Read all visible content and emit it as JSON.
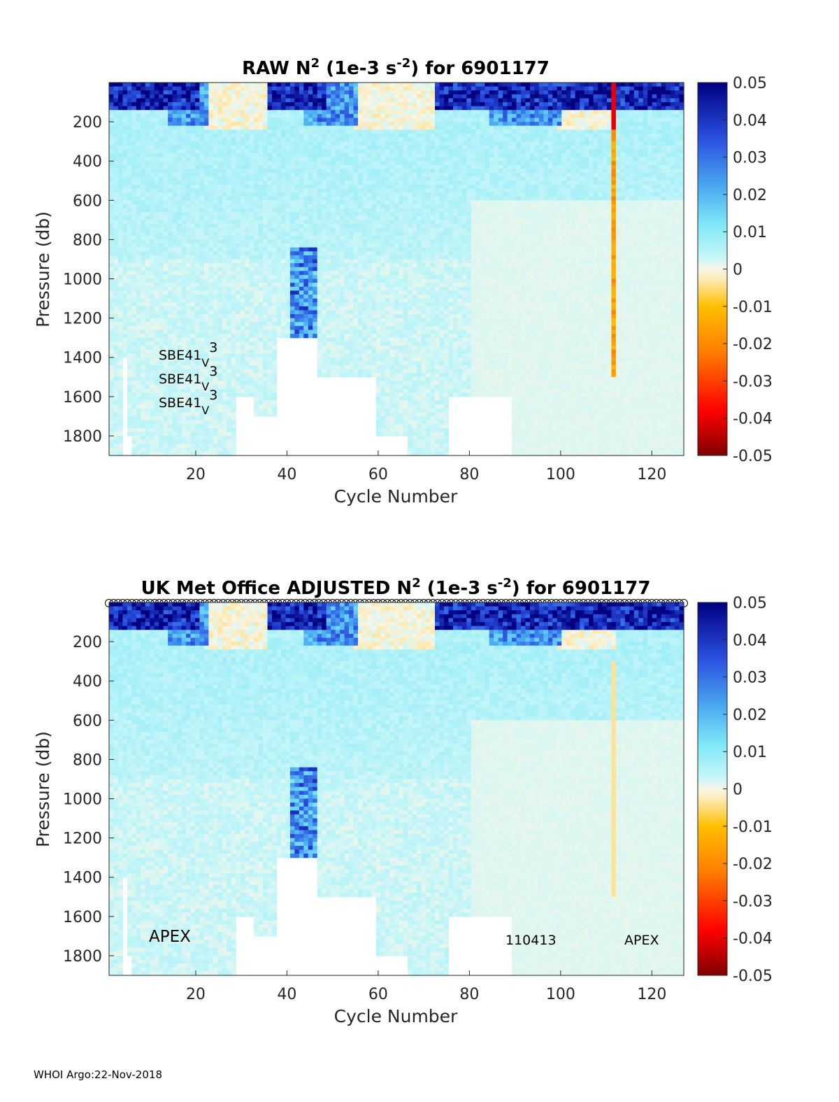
{
  "footer": "WHOI Argo:22-Nov-2018",
  "chart_data": [
    {
      "type": "heatmap",
      "title_parts": [
        "RAW N",
        "2",
        " (1e-3 s",
        "-2",
        ") for 6901177"
      ],
      "xlabel": "Cycle Number",
      "ylabel": "Pressure (db)",
      "xlim": [
        1,
        127
      ],
      "ylim": [
        0,
        1900
      ],
      "y_reversed": true,
      "xticks": [
        20,
        40,
        60,
        80,
        100,
        120
      ],
      "yticks": [
        200,
        400,
        600,
        800,
        1000,
        1200,
        1400,
        1600,
        1800
      ],
      "colorbar": {
        "ticks": [
          "0.05",
          "0.04",
          "0.03",
          "0.02",
          "0.01",
          "0",
          "-0.01",
          "-0.02",
          "-0.03",
          "-0.04",
          "-0.05"
        ],
        "clim": [
          -0.05,
          0.05
        ]
      },
      "annotations": [
        {
          "base": "SBE41",
          "sub": "V",
          "tail": "3"
        },
        {
          "base": "SBE41",
          "sub": "V",
          "tail": "3"
        },
        {
          "base": "SBE41",
          "sub": "V",
          "tail": "3"
        }
      ],
      "max_depth_by_cycle_segments": [
        {
          "from": 1,
          "to": 3,
          "max_pressure": 1900
        },
        {
          "from": 4,
          "to": 4,
          "max_pressure": 1400
        },
        {
          "from": 5,
          "to": 5,
          "max_pressure": 1800
        },
        {
          "from": 6,
          "to": 28,
          "max_pressure": 1900
        },
        {
          "from": 29,
          "to": 32,
          "max_pressure": 1600
        },
        {
          "from": 33,
          "to": 37,
          "max_pressure": 1700
        },
        {
          "from": 38,
          "to": 46,
          "max_pressure": 1300
        },
        {
          "from": 47,
          "to": 59,
          "max_pressure": 1500
        },
        {
          "from": 60,
          "to": 66,
          "max_pressure": 1800
        },
        {
          "from": 67,
          "to": 75,
          "max_pressure": 1900
        },
        {
          "from": 76,
          "to": 89,
          "max_pressure": 1600
        },
        {
          "from": 90,
          "to": 127,
          "max_pressure": 1900
        }
      ],
      "features": [
        {
          "desc": "strong positive N2 near surface",
          "cycles": [
            1,
            20
          ],
          "pressure": [
            30,
            120
          ],
          "value": 0.05
        },
        {
          "desc": "strong positive N2 near surface",
          "cycles": [
            36,
            48
          ],
          "pressure": [
            30,
            120
          ],
          "value": 0.05
        },
        {
          "desc": "strong positive N2 near surface",
          "cycles": [
            73,
            98
          ],
          "pressure": [
            30,
            200
          ],
          "value": 0.05
        },
        {
          "desc": "negative spike column",
          "cycles": [
            112,
            113
          ],
          "pressure": [
            0,
            1500
          ],
          "value": -0.02
        },
        {
          "desc": "deep positive patch",
          "cycles": [
            42,
            45
          ],
          "pressure": [
            850,
            1350
          ],
          "value": 0.04
        }
      ]
    },
    {
      "type": "heatmap",
      "title_parts": [
        "UK Met Office  ADJUSTED N",
        "2",
        " (1e-3 s",
        "-2",
        ") for 6901177"
      ],
      "xlabel": "Cycle Number",
      "ylabel": "Pressure (db)",
      "xlim": [
        1,
        127
      ],
      "ylim": [
        0,
        1900
      ],
      "y_reversed": true,
      "xticks": [
        20,
        40,
        60,
        80,
        100,
        120
      ],
      "yticks": [
        200,
        400,
        600,
        800,
        1000,
        1200,
        1400,
        1600,
        1800
      ],
      "colorbar": {
        "ticks": [
          "0.05",
          "0.04",
          "0.03",
          "0.02",
          "0.01",
          "0",
          "-0.01",
          "-0.02",
          "-0.03",
          "-0.04",
          "-0.05"
        ],
        "clim": [
          -0.05,
          0.05
        ]
      },
      "top_markers": "circle per cycle",
      "annotations_left": "APEX",
      "annotations_mid": "110413",
      "annotations_right": "APEX",
      "features": [
        {
          "desc": "strong positive N2 near surface",
          "cycles": [
            1,
            20
          ],
          "pressure": [
            30,
            120
          ],
          "value": 0.05
        },
        {
          "desc": "strong positive N2 near surface",
          "cycles": [
            36,
            48
          ],
          "pressure": [
            30,
            120
          ],
          "value": 0.05
        },
        {
          "desc": "strong positive N2 near surface",
          "cycles": [
            73,
            127
          ],
          "pressure": [
            30,
            200
          ],
          "value": 0.05
        },
        {
          "desc": "deep positive patch",
          "cycles": [
            42,
            45
          ],
          "pressure": [
            900,
            1350
          ],
          "value": 0.04
        }
      ]
    }
  ]
}
